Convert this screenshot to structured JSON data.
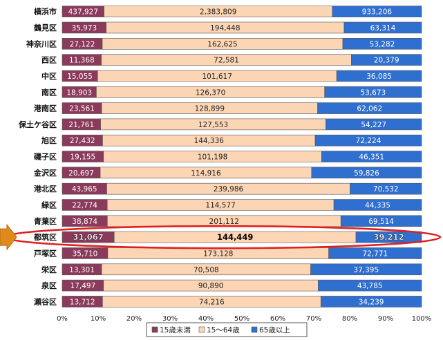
{
  "chart_data": {
    "type": "bar",
    "stacked": "percent",
    "orientation": "horizontal",
    "categories": [
      "横浜市",
      "鶴見区",
      "神奈川区",
      "西区",
      "中区",
      "南区",
      "港南区",
      "保土ケ谷区",
      "旭区",
      "磯子区",
      "金沢区",
      "港北区",
      "緑区",
      "青葉区",
      "都筑区",
      "戸塚区",
      "栄区",
      "泉区",
      "瀬谷区"
    ],
    "series": [
      {
        "name": "15歳未満",
        "color": "#8b3a5c",
        "values": [
          437927,
          35973,
          27122,
          11368,
          15055,
          18903,
          23561,
          21761,
          27432,
          19155,
          20697,
          43965,
          22774,
          38874,
          31067,
          35710,
          13301,
          17497,
          13712
        ],
        "labels": [
          "437,927",
          "35,973",
          "27,122",
          "11,368",
          "15,055",
          "18,903",
          "23,561",
          "21,761",
          "27,432",
          "19,155",
          "20,697",
          "43,965",
          "22,774",
          "38,874",
          "31,067",
          "35,710",
          "13,301",
          "17,497",
          "13,712"
        ]
      },
      {
        "name": "15～64歳",
        "color": "#fcd5b4",
        "values": [
          2383809,
          194448,
          162625,
          72581,
          101617,
          126370,
          128899,
          127553,
          144336,
          101198,
          114916,
          239986,
          114577,
          201112,
          144449,
          173128,
          70508,
          90890,
          74216
        ],
        "labels": [
          "2,383,809",
          "194,448",
          "162,625",
          "72,581",
          "101,617",
          "126,370",
          "128,899",
          "127,553",
          "144,336",
          "101,198",
          "114,916",
          "239,986",
          "114,577",
          "201,112",
          "144,449",
          "173,128",
          "70,508",
          "90,890",
          "74,216"
        ]
      },
      {
        "name": "65歳以上",
        "color": "#2f6fd0",
        "values": [
          933206,
          63314,
          53282,
          20379,
          36085,
          53673,
          62062,
          54227,
          72224,
          46351,
          59826,
          70532,
          44335,
          69514,
          39212,
          72771,
          37395,
          43785,
          34239
        ],
        "labels": [
          "933,206",
          "63,314",
          "53,282",
          "20,379",
          "36,085",
          "53,673",
          "62,062",
          "54,227",
          "72,224",
          "46,351",
          "59,826",
          "70,532",
          "44,335",
          "69,514",
          "39,212",
          "72,771",
          "37,395",
          "43,785",
          "34,239"
        ]
      }
    ],
    "x_ticks": [
      "0%",
      "10%",
      "20%",
      "30%",
      "40%",
      "50%",
      "60%",
      "70%",
      "80%",
      "90%",
      "100%"
    ],
    "xlim": [
      0,
      100
    ],
    "highlight_category": "都筑区",
    "grid": false,
    "legend_position": "bottom-center"
  }
}
